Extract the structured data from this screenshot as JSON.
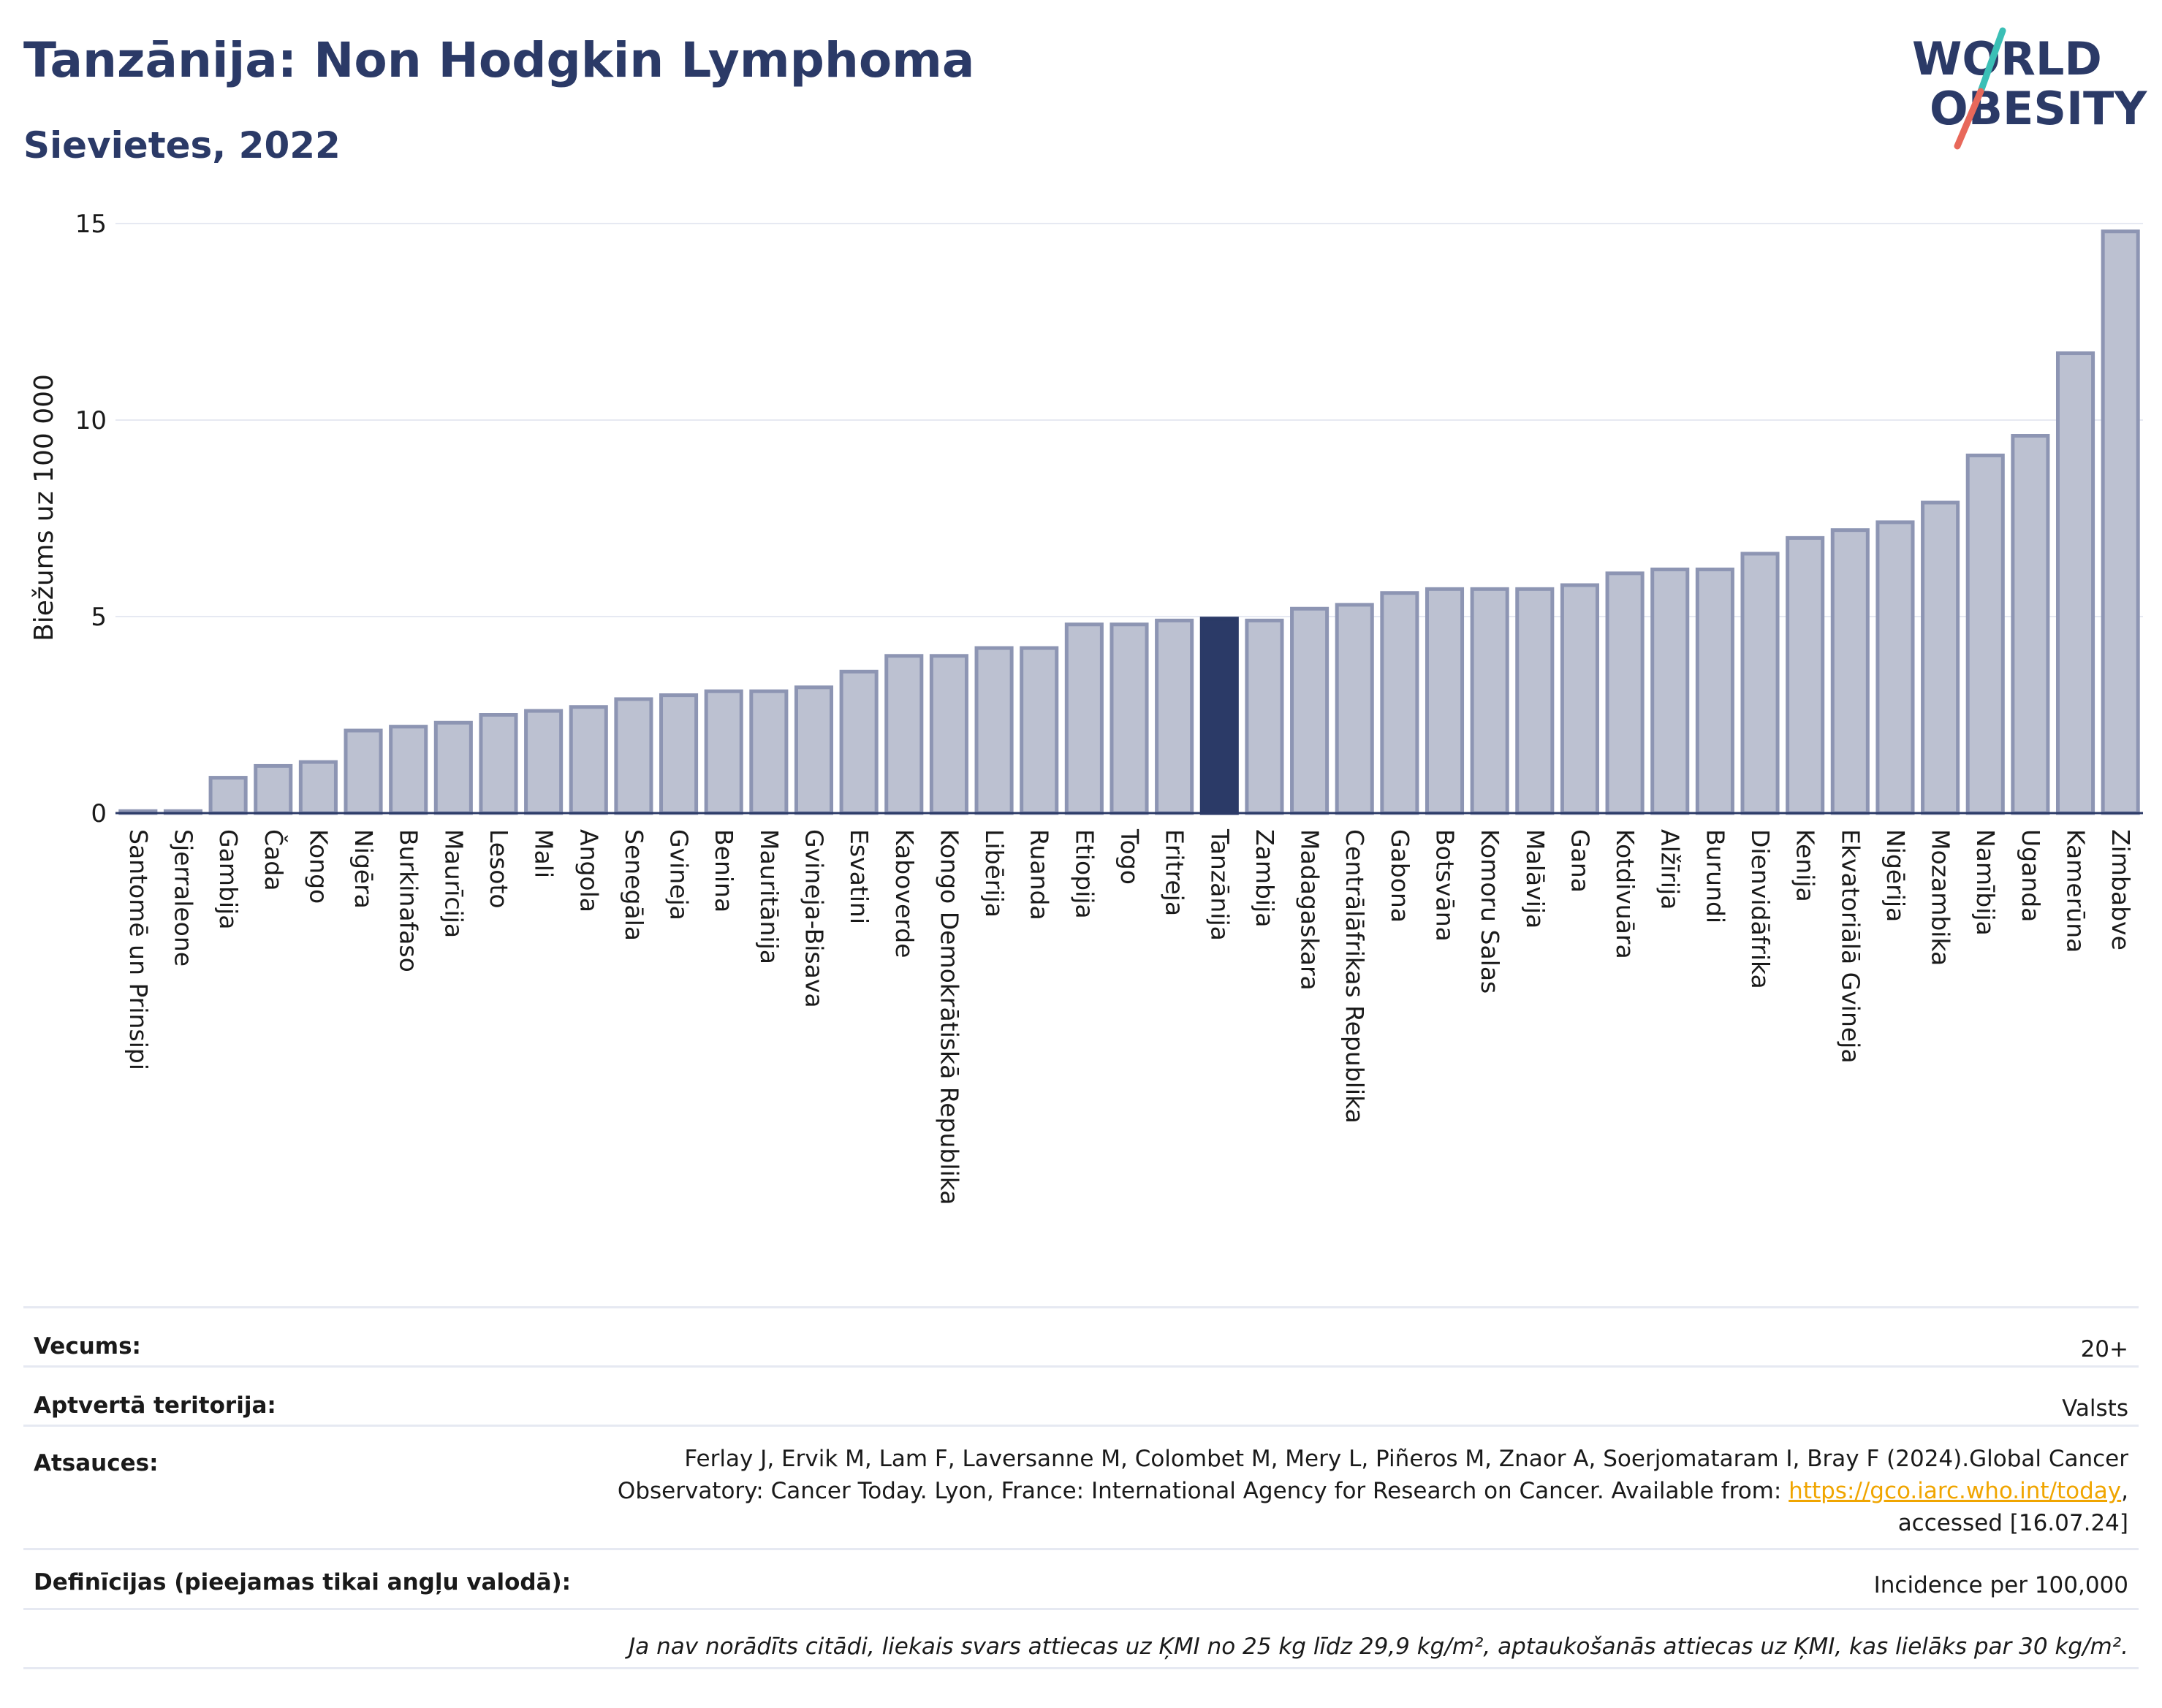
{
  "header": {
    "title": "Tanzānija: Non Hodgkin Lymphoma",
    "subtitle": "Sievietes, 2022"
  },
  "logo": {
    "line1": "WORLD",
    "line2": "OBESITY",
    "colors": {
      "text": "#2b3a67",
      "slash_top": "#3bbfb6",
      "slash_bottom": "#e8685a"
    }
  },
  "colors": {
    "bar": "#bcc1d1",
    "bar_border": "#8d95b3",
    "highlight": "#2b3a67",
    "grid": "#e6e9f2",
    "axis": "#2b3a67"
  },
  "chart_data": {
    "type": "bar",
    "title": "",
    "xlabel": "",
    "ylabel": "Biežums uz 100 000",
    "ylim": [
      0,
      15
    ],
    "yticks": [
      0,
      5,
      10,
      15
    ],
    "grid": true,
    "highlight_category": "Tanzānija",
    "categories": [
      "Santomē un Prinsipi",
      "Sjerraleone",
      "Gambija",
      "Čada",
      "Kongo",
      "Nigēra",
      "Burkinafaso",
      "Maurīcija",
      "Lesoto",
      "Mali",
      "Angola",
      "Senegāla",
      "Gvineja",
      "Benina",
      "Mauritānija",
      "Gvineja-Bisava",
      "Esvatini",
      "Kaboverde",
      "Kongo Demokrātiskā Republika",
      "Libērija",
      "Ruanda",
      "Etiopija",
      "Togo",
      "Eritreja",
      "Tanzānija",
      "Zambija",
      "Madagaskara",
      "Centrālāfrikas Republika",
      "Gabona",
      "Botsvāna",
      "Komoru Salas",
      "Malāvija",
      "Gana",
      "Kotdivuāra",
      "Alžīrija",
      "Burundi",
      "Dienvidāfrika",
      "Kenija",
      "Ekvatoriālā Gvineja",
      "Nigērija",
      "Mozambika",
      "Namībija",
      "Uganda",
      "Kamerūna",
      "Zimbabve"
    ],
    "values": [
      0.05,
      0.05,
      0.9,
      1.2,
      1.3,
      2.1,
      2.2,
      2.3,
      2.5,
      2.6,
      2.7,
      2.9,
      3.0,
      3.1,
      3.1,
      3.2,
      3.6,
      4.0,
      4.0,
      4.2,
      4.2,
      4.8,
      4.8,
      4.9,
      4.95,
      4.9,
      5.2,
      5.3,
      5.6,
      5.7,
      5.7,
      5.7,
      5.8,
      6.1,
      6.2,
      6.2,
      6.6,
      7.0,
      7.2,
      7.4,
      7.9,
      9.1,
      9.6,
      11.7,
      14.8
    ]
  },
  "info": {
    "age_label": "Vecums:",
    "age_value": "20+",
    "territory_label": "Aptvertā teritorija:",
    "territory_value": "Valsts",
    "refs_label": "Atsauces:",
    "refs_line1": "Ferlay J, Ervik M, Lam F, Laversanne M, Colombet M, Mery L, Piñeros M, Znaor A, Soerjomataram I, Bray F (2024).Global Cancer",
    "refs_line2_pre": "Observatory: Cancer Today. Lyon, France: International Agency for Research on Cancer. Available from: ",
    "refs_link": "https://gco.iarc.who.int/today",
    "refs_line2_post": ",",
    "refs_line3": "accessed [16.07.24]",
    "defs_label": "Definīcijas (pieejamas tikai angļu valodā):",
    "defs_value": "Incidence per 100,000",
    "note": "Ja nav norādīts citādi, liekais svars attiecas uz ĶMI no 25 kg līdz 29,9 kg/m², aptaukošanās attiecas uz ĶMI, kas lielāks par 30 kg/m²."
  }
}
